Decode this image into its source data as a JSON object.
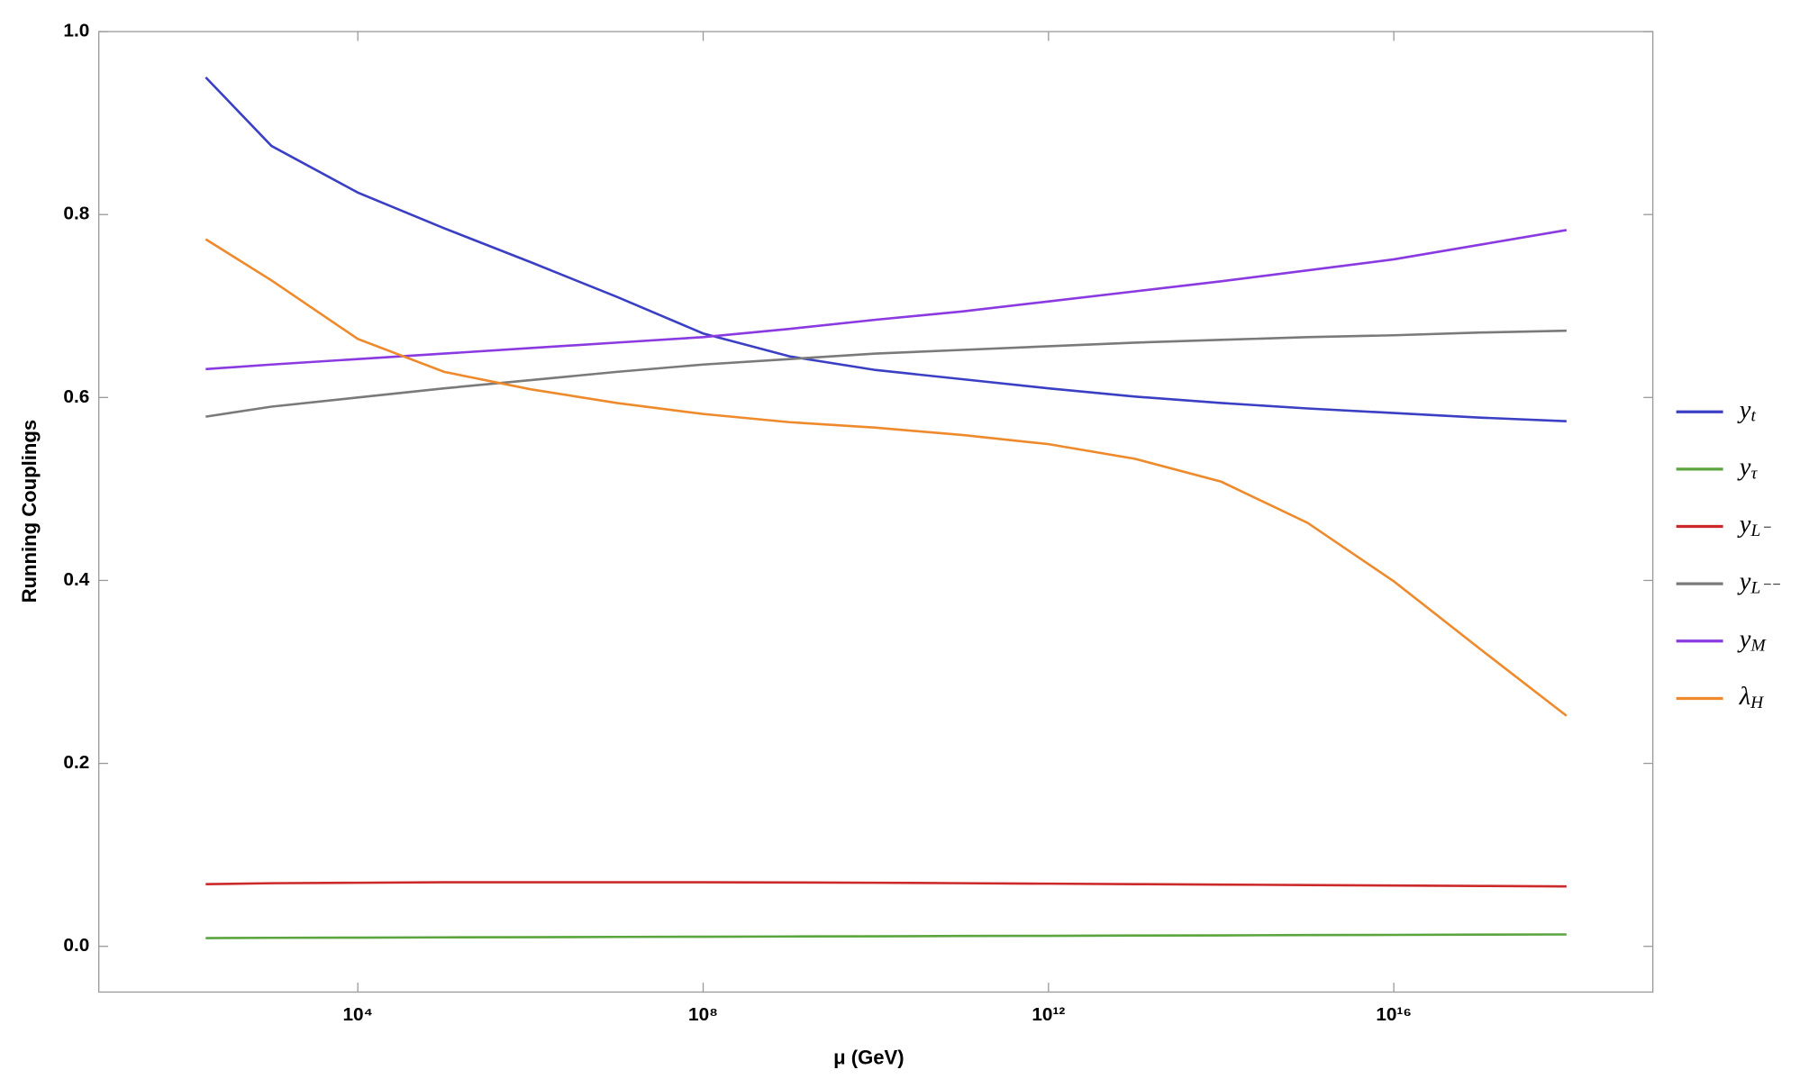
{
  "chart_data": {
    "type": "line",
    "xlabel": "μ (GeV)",
    "ylabel": "Running Couplings",
    "xscale": "log",
    "x": [
      173,
      1000.0,
      10000.0,
      100000.0,
      1000000.0,
      10000000.0,
      100000000.0,
      1000000000.0,
      10000000000.0,
      100000000000.0,
      1000000000000.0,
      10000000000000.0,
      100000000000000.0,
      1000000000000000.0,
      1e+16,
      1e+17,
      1e+18
    ],
    "series": [
      {
        "name": "yt",
        "color": "#3a3fc4",
        "values": [
          0.95,
          0.875,
          0.824,
          0.785,
          0.748,
          0.71,
          0.67,
          0.645,
          0.63,
          0.62,
          0.61,
          0.601,
          0.594,
          0.588,
          0.583,
          0.578,
          0.574
        ]
      },
      {
        "name": "yτ",
        "color": "#5aa53e",
        "values": [
          0.009,
          0.0093,
          0.0095,
          0.0098,
          0.01,
          0.0103,
          0.0105,
          0.0108,
          0.011,
          0.0113,
          0.0115,
          0.0118,
          0.012,
          0.0123,
          0.0125,
          0.0128,
          0.013
        ]
      },
      {
        "name": "yL⁻",
        "color": "#cc2a2a",
        "values": [
          0.068,
          0.069,
          0.0695,
          0.07,
          0.07,
          0.07,
          0.07,
          0.0698,
          0.0695,
          0.069,
          0.0685,
          0.068,
          0.0675,
          0.067,
          0.0665,
          0.066,
          0.0655
        ]
      },
      {
        "name": "yL⁻⁻",
        "color": "#7a7a7a",
        "values": [
          0.579,
          0.59,
          0.6,
          0.61,
          0.619,
          0.628,
          0.636,
          0.642,
          0.648,
          0.652,
          0.656,
          0.66,
          0.663,
          0.666,
          0.668,
          0.671,
          0.673
        ]
      },
      {
        "name": "yM",
        "color": "#8a3ae0",
        "values": [
          0.631,
          0.636,
          0.642,
          0.648,
          0.654,
          0.66,
          0.666,
          0.675,
          0.685,
          0.694,
          0.705,
          0.716,
          0.727,
          0.739,
          0.751,
          0.767,
          0.783
        ]
      },
      {
        "name": "λH",
        "color": "#ef8a2c",
        "values": [
          0.773,
          0.728,
          0.664,
          0.628,
          0.609,
          0.594,
          0.582,
          0.573,
          0.567,
          0.559,
          0.549,
          0.533,
          0.508,
          0.463,
          0.399,
          0.325,
          0.252
        ]
      }
    ],
    "xlim": [
      10,
      1e+19
    ],
    "xticks": [
      {
        "value": 10000.0,
        "label": "10⁴"
      },
      {
        "value": 100000000.0,
        "label": "10⁸"
      },
      {
        "value": 1000000000000.0,
        "label": "10¹²"
      },
      {
        "value": 1e+16,
        "label": "10¹⁶"
      }
    ],
    "ylim": [
      -0.05,
      1.0
    ],
    "yticks": [
      {
        "value": 0,
        "label": "0.0"
      },
      0.2,
      0.4,
      0.6,
      0.8,
      {
        "value": 1,
        "label": "1.0"
      }
    ],
    "legend": "right"
  }
}
